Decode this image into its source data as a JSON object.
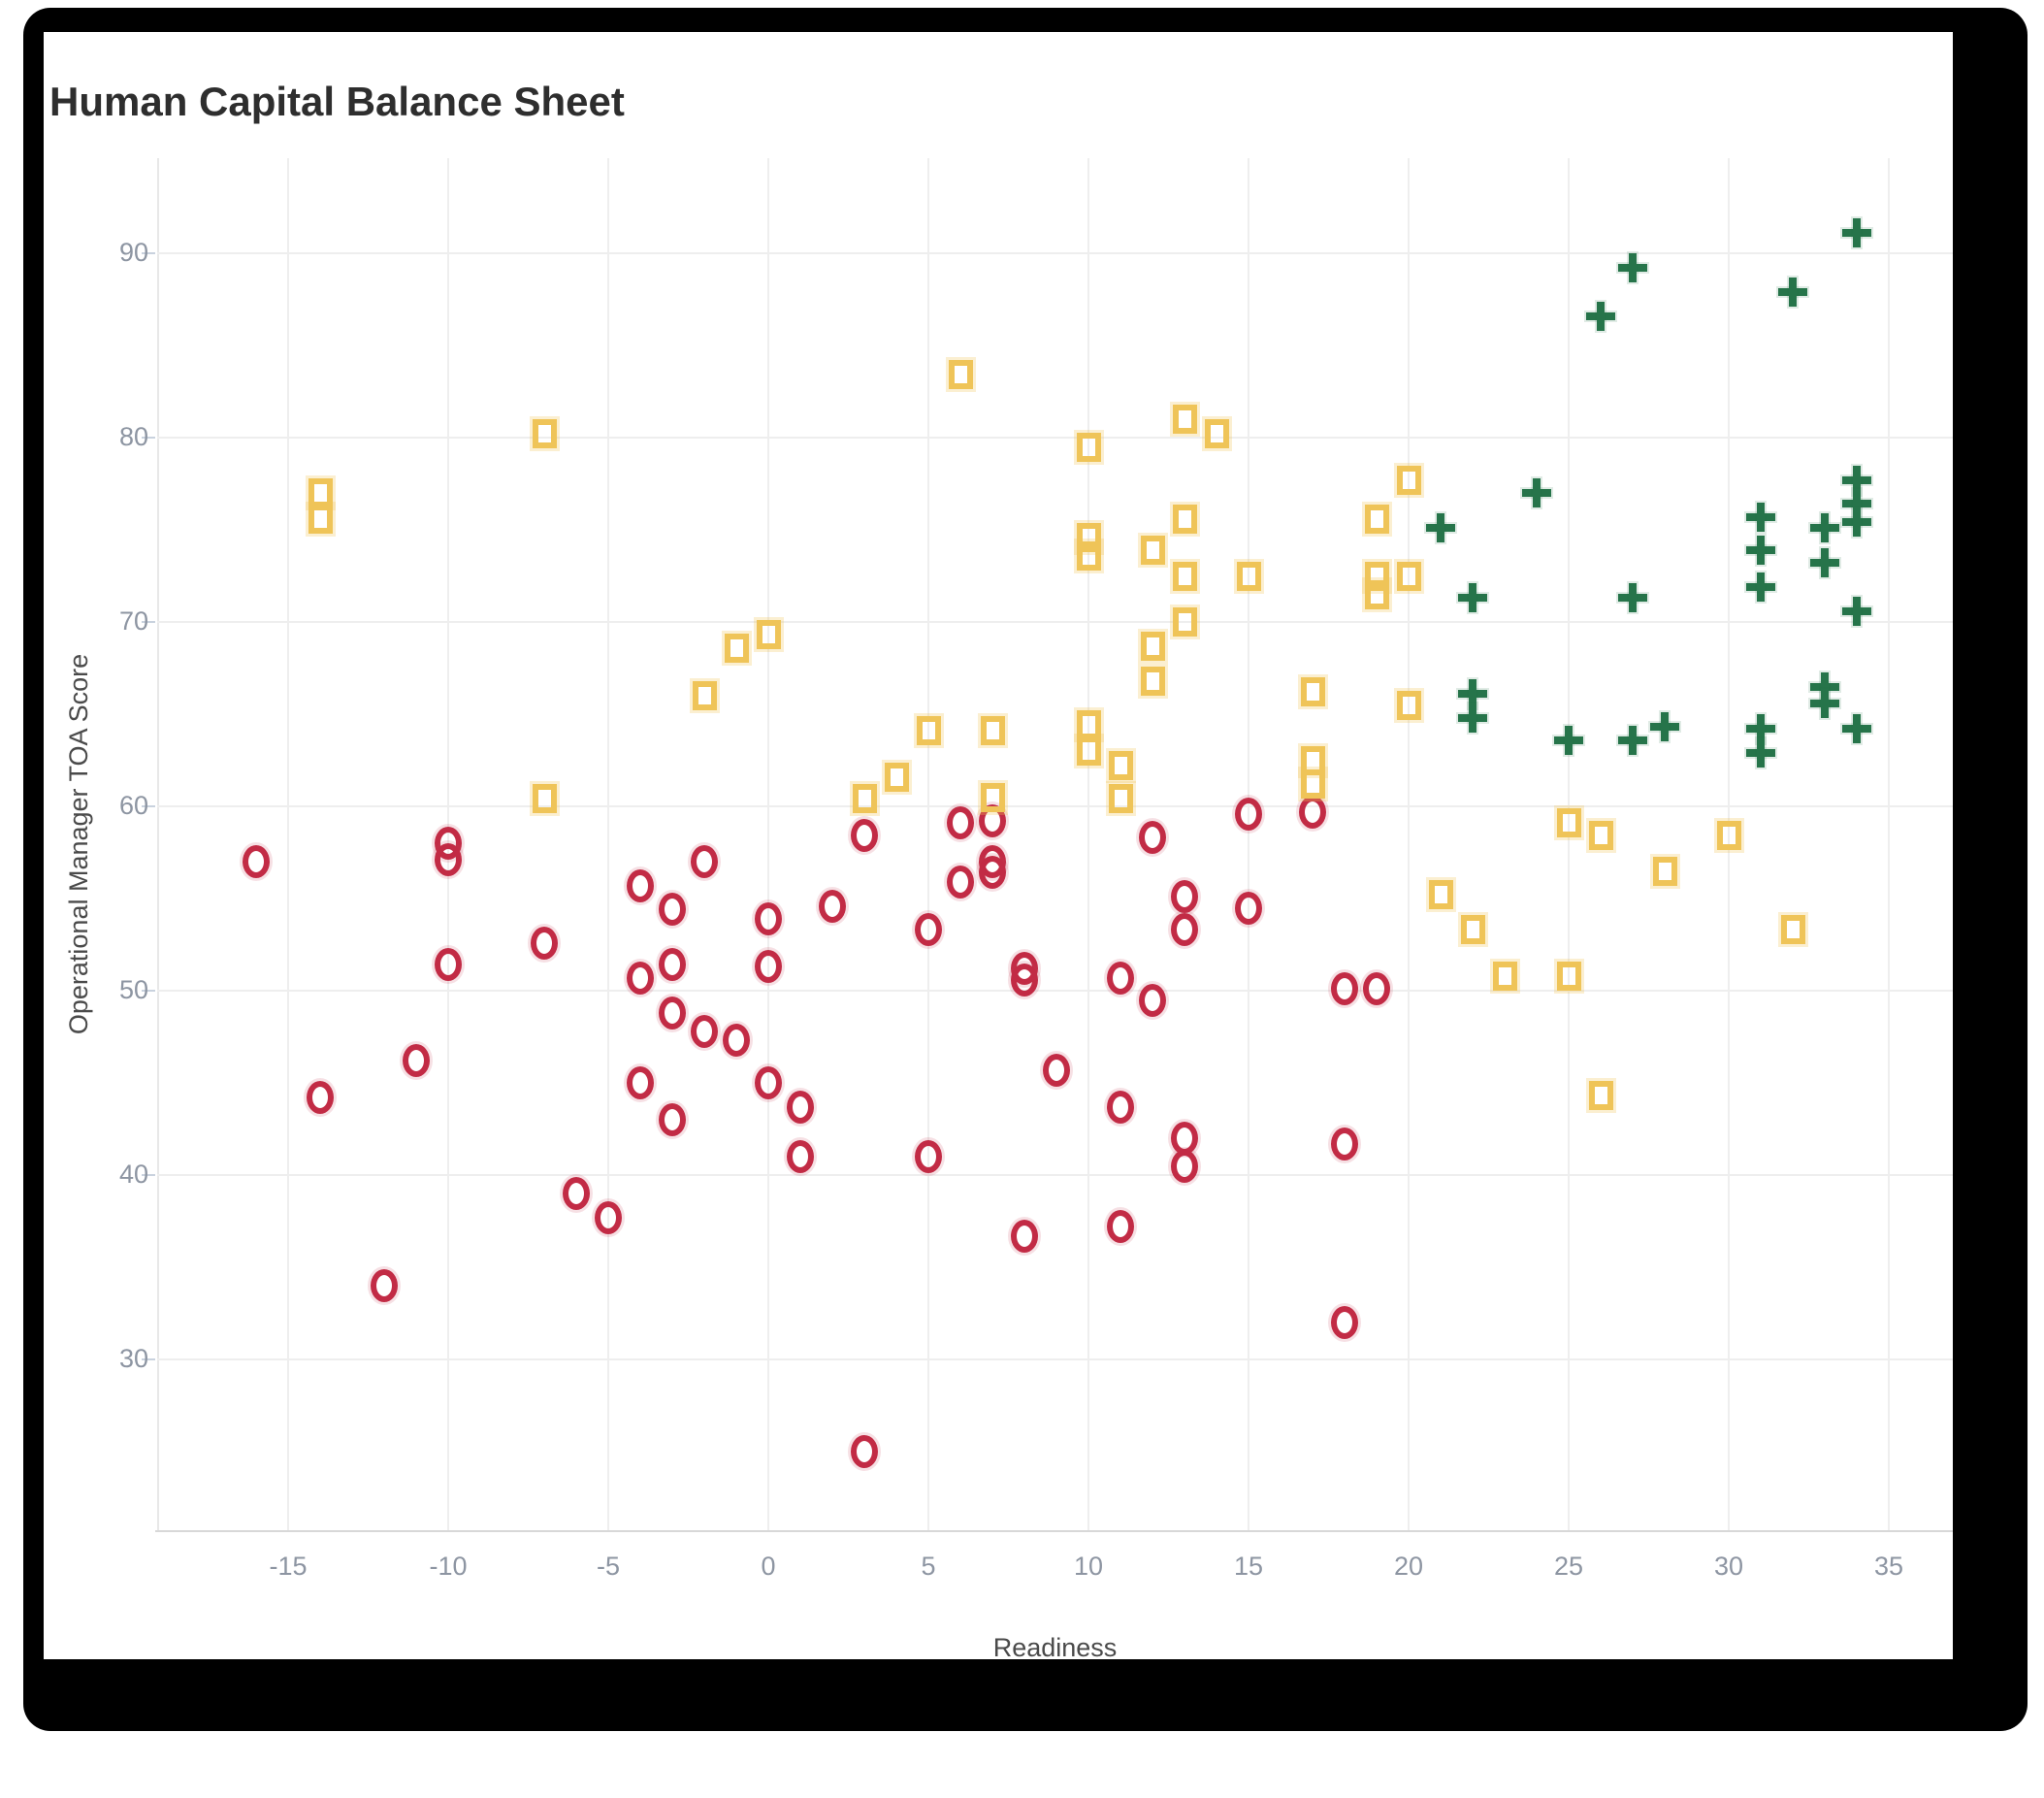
{
  "title": "Human Capital Balance Sheet",
  "chart_data": {
    "type": "scatter",
    "title": "Human Capital Balance Sheet",
    "xlabel": "Readiness",
    "ylabel": "Operational Manager TOA Score",
    "xlim": [
      -19,
      37
    ],
    "ylim": [
      20.5,
      95.2
    ],
    "grid": true,
    "legend_position": "none",
    "x_ticks": [
      -15,
      -10,
      -5,
      0,
      5,
      10,
      15,
      20,
      25,
      30,
      35
    ],
    "y_ticks": [
      30,
      40,
      50,
      60,
      70,
      80,
      90
    ],
    "series": [
      {
        "name": "circle-markers",
        "marker": "circle",
        "color": "#C22B45",
        "points": [
          [
            -16,
            57
          ],
          [
            -14,
            44.2
          ],
          [
            -12,
            34
          ],
          [
            -11,
            46.2
          ],
          [
            -10,
            58
          ],
          [
            -10,
            57.1
          ],
          [
            -10,
            51.4
          ],
          [
            -7,
            52.6
          ],
          [
            -6,
            39
          ],
          [
            -5,
            37.7
          ],
          [
            -4,
            55.7
          ],
          [
            -4,
            50.7
          ],
          [
            -4,
            45
          ],
          [
            -3,
            54.4
          ],
          [
            -3,
            51.4
          ],
          [
            -3,
            48.8
          ],
          [
            -3,
            43
          ],
          [
            -2,
            57
          ],
          [
            -2,
            47.8
          ],
          [
            -1,
            47.3
          ],
          [
            0,
            53.9
          ],
          [
            0,
            51.3
          ],
          [
            0,
            45
          ],
          [
            1,
            43.7
          ],
          [
            1,
            41
          ],
          [
            2,
            54.6
          ],
          [
            3,
            58.4
          ],
          [
            3,
            25
          ],
          [
            5,
            53.3
          ],
          [
            5,
            41
          ],
          [
            6,
            59.1
          ],
          [
            6,
            55.9
          ],
          [
            7,
            59.2
          ],
          [
            7,
            57
          ],
          [
            7,
            56.4
          ],
          [
            8,
            51.2
          ],
          [
            8,
            50.6
          ],
          [
            8,
            36.7
          ],
          [
            9,
            45.7
          ],
          [
            11,
            50.7
          ],
          [
            11,
            43.7
          ],
          [
            11,
            37.2
          ],
          [
            12,
            58.3
          ],
          [
            12,
            49.5
          ],
          [
            13,
            55.1
          ],
          [
            13,
            53.3
          ],
          [
            13,
            42
          ],
          [
            13,
            40.5
          ],
          [
            15,
            59.6
          ],
          [
            15,
            54.5
          ],
          [
            17,
            59.7
          ],
          [
            18,
            50.1
          ],
          [
            19,
            50.1
          ],
          [
            18,
            41.7
          ],
          [
            18,
            32
          ]
        ]
      },
      {
        "name": "square-markers",
        "marker": "square",
        "color": "#EFC458",
        "points": [
          [
            -14,
            77
          ],
          [
            -14,
            75.6
          ],
          [
            -7,
            80.2
          ],
          [
            -7,
            60.4
          ],
          [
            -2,
            66
          ],
          [
            -1,
            68.6
          ],
          [
            0,
            69.3
          ],
          [
            3,
            60.4
          ],
          [
            4,
            61.6
          ],
          [
            5,
            64.1
          ],
          [
            6,
            83.4
          ],
          [
            7,
            64.1
          ],
          [
            7,
            60.5
          ],
          [
            10,
            79.5
          ],
          [
            10,
            74.6
          ],
          [
            10,
            73.6
          ],
          [
            10,
            64.4
          ],
          [
            10,
            63
          ],
          [
            11,
            62.2
          ],
          [
            11,
            60.4
          ],
          [
            12,
            73.9
          ],
          [
            12,
            68.7
          ],
          [
            12,
            66.8
          ],
          [
            13,
            81
          ],
          [
            13,
            75.6
          ],
          [
            13,
            72.5
          ],
          [
            13,
            70
          ],
          [
            14,
            80.2
          ],
          [
            15,
            72.5
          ],
          [
            17,
            66.2
          ],
          [
            17,
            62.5
          ],
          [
            17,
            61.2
          ],
          [
            19,
            75.6
          ],
          [
            19,
            72.5
          ],
          [
            19,
            71.5
          ],
          [
            20,
            77.7
          ],
          [
            20,
            72.5
          ],
          [
            20,
            65.5
          ],
          [
            21,
            55.2
          ],
          [
            22,
            53.3
          ],
          [
            23,
            50.8
          ],
          [
            25,
            59.1
          ],
          [
            25,
            50.8
          ],
          [
            26,
            58.4
          ],
          [
            26,
            44.3
          ],
          [
            28,
            56.5
          ],
          [
            30,
            58.4
          ],
          [
            32,
            53.3
          ]
        ]
      },
      {
        "name": "plus-markers",
        "marker": "plus",
        "color": "#26744A",
        "points": [
          [
            21,
            75.1
          ],
          [
            22,
            71.3
          ],
          [
            22,
            66.1
          ],
          [
            22,
            64.8
          ],
          [
            24,
            77
          ],
          [
            25,
            63.6
          ],
          [
            26,
            86.6
          ],
          [
            27,
            89.2
          ],
          [
            27,
            71.3
          ],
          [
            27,
            63.6
          ],
          [
            28,
            64.3
          ],
          [
            31,
            75.7
          ],
          [
            31,
            73.9
          ],
          [
            31,
            71.9
          ],
          [
            31,
            64.2
          ],
          [
            31,
            62.9
          ],
          [
            32,
            87.9
          ],
          [
            33,
            75.1
          ],
          [
            33,
            73.2
          ],
          [
            33,
            66.5
          ],
          [
            33,
            65.6
          ],
          [
            34,
            91.1
          ],
          [
            34,
            77.7
          ],
          [
            34,
            76.4
          ],
          [
            34,
            75.4
          ],
          [
            34,
            70.6
          ],
          [
            34,
            64.2
          ]
        ]
      }
    ]
  }
}
